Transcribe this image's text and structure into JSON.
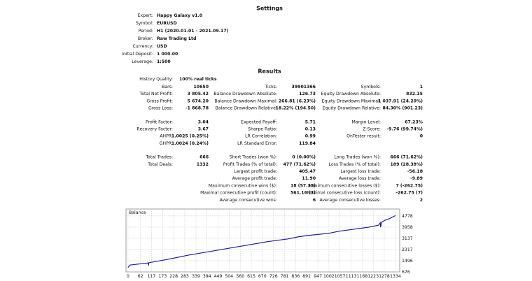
{
  "settings": {
    "title": "Settings",
    "rows": [
      [
        "Expert:",
        "Happy Galaxy v1.0"
      ],
      [
        "Symbol:",
        "EURUSD"
      ],
      [
        "Period:",
        "H1 (2020.01.01 - 2021.09.17)"
      ],
      [
        "Broker:",
        "Raw Trading Ltd"
      ],
      [
        "Currency:",
        "USD"
      ],
      [
        "Initial Deposit:",
        "1 000.00"
      ],
      [
        "Leverage:",
        "1:500"
      ]
    ]
  },
  "results": {
    "title": "Results",
    "history_quality": [
      "History Quality:",
      "100% real ticks"
    ],
    "groups": [
      [
        [
          "Bars:",
          "10650",
          "Ticks:",
          "39901366",
          "Symbols:",
          "1"
        ],
        [
          "Total Net Profit:",
          "3 805.42",
          "Balance Drawdown Absolute:",
          "126.73",
          "Equity Drawdown Absolute:",
          "832.15"
        ],
        [
          "Gross Profit:",
          "5 674.20",
          "Balance Drawdown Maximal:",
          "266.81 (6.23%)",
          "Equity Drawdown Maximal:",
          "1 037.91 (24.20%)"
        ],
        [
          "Gross Loss:",
          "-1 868.78",
          "Balance Drawdown Relative:",
          "18.22% (194.50)",
          "Equity Drawdown Relative:",
          "84.30% (901.23)"
        ]
      ],
      [
        [
          "Profit Factor:",
          "3.04",
          "Expected Payoff:",
          "5.71",
          "Margin Level:",
          "67.23%"
        ],
        [
          "Recovery Factor:",
          "3.67",
          "Sharpe Ratio:",
          "0.13",
          "Z-Score:",
          "-9.76 (99.74%)"
        ],
        [
          "AHPR:",
          "1.0025 (0.25%)",
          "LR Correlation:",
          "0.99",
          "OnTester result:",
          "0"
        ],
        [
          "GHPR:",
          "1.0024 (0.24%)",
          "LR Standard Error:",
          "119.84",
          null,
          null
        ]
      ],
      [
        [
          "Total Trades:",
          "666",
          "Short Trades (won %):",
          "0 (0.00%)",
          "Long Trades (won %):",
          "666 (71.62%)"
        ],
        [
          "Total Deals:",
          "1332",
          "Profit Trades (% of total):",
          "477 (71.62%)",
          "Loss Trades (% of total):",
          "189 (28.38%)"
        ],
        [
          null,
          null,
          "Largest profit trade:",
          "405.47",
          "Largest loss trade:",
          "-56.18"
        ],
        [
          null,
          null,
          "Average profit trade:",
          "11.90",
          "Average loss trade:",
          "-9.89"
        ],
        [
          null,
          null,
          "Maximum consecutive wins ($):",
          "18 (57.33)",
          "Maximum consecutive losses ($):",
          "7 (-262.75)"
        ],
        [
          null,
          null,
          "Maximal consecutive profit (count):",
          "561.16 (3)",
          "Maximal consecutive loss (count):",
          "-262.75 (7)"
        ],
        [
          null,
          null,
          "Average consecutive wins:",
          "6",
          "Average consecutive losses:",
          "2"
        ]
      ]
    ]
  },
  "balance_chart": {
    "type": "line",
    "title": "Balance",
    "color": "#1a1aa8",
    "x": [
      0,
      10,
      80,
      100,
      102,
      104,
      200,
      300,
      400,
      460,
      500,
      600,
      700,
      800,
      850,
      900,
      1000,
      1050,
      1100,
      1150,
      1200,
      1250,
      1258,
      1260,
      1264,
      1280,
      1300,
      1334
    ],
    "values": [
      1000,
      1180,
      1300,
      1330,
      1150,
      1350,
      1600,
      1900,
      2150,
      2300,
      2400,
      2650,
      2900,
      3100,
      3250,
      3350,
      3500,
      3650,
      3750,
      3850,
      3950,
      4100,
      4280,
      3950,
      4300,
      4450,
      4550,
      4805
    ],
    "xlim": [
      -10,
      1355
    ],
    "ylim": [
      676,
      5284
    ],
    "xticks": [
      0,
      62,
      117,
      173,
      228,
      283,
      339,
      394,
      449,
      504,
      560,
      615,
      670,
      726,
      781,
      836,
      891,
      947,
      1002,
      1057,
      1113,
      1168,
      1223,
      1278,
      1334
    ],
    "yticks": [
      676,
      1496,
      2317,
      3137,
      3958,
      4778
    ],
    "grid": true
  }
}
